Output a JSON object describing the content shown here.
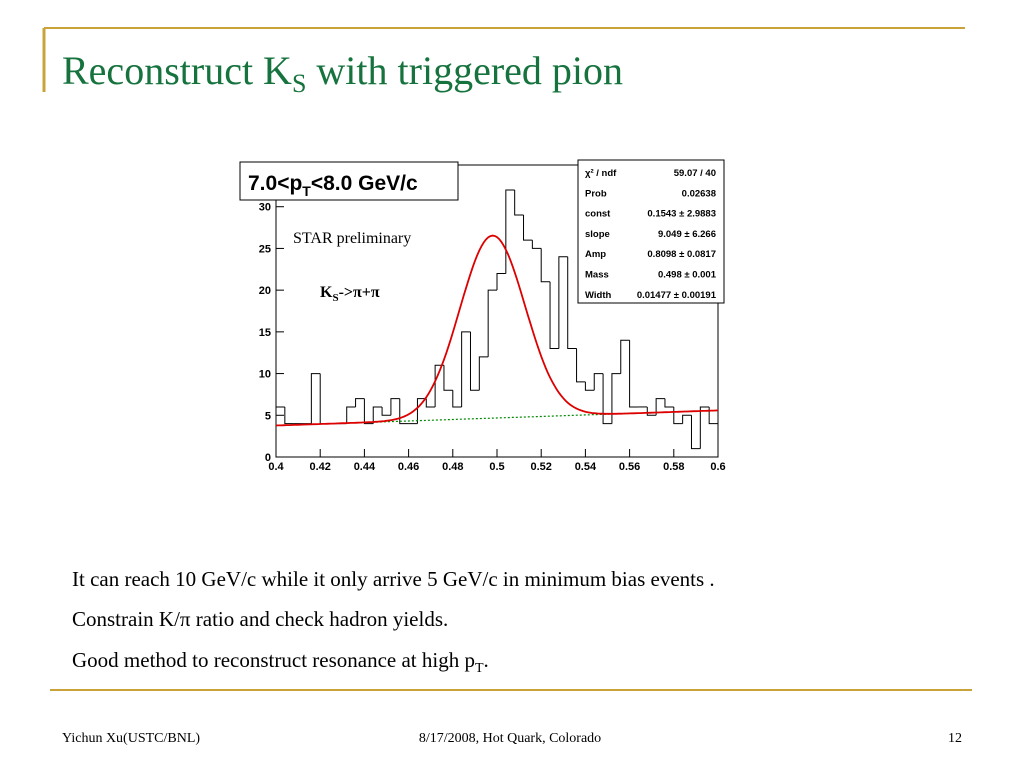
{
  "slide": {
    "title": {
      "main": "Reconstruct K",
      "sub": "S",
      "rest": " with triggered pion"
    },
    "body": [
      {
        "text": "It can reach 10 GeV/c while it only arrive 5 GeV/c in minimum bias events ."
      },
      {
        "text": "Constrain K/π ratio and check hadron yields."
      },
      {
        "text": "Good method to reconstruct resonance at high p",
        "sub": "T",
        "rest": "."
      }
    ],
    "footer": {
      "left": "Yichun Xu(USTC/BNL)",
      "center": "8/17/2008, Hot Quark, Colorado",
      "right": "12"
    }
  },
  "chart_data": {
    "type": "histogram",
    "title": {
      "main": "7.0<p",
      "sub": "T",
      "rest": "<8.0 GeV/c"
    },
    "annotations": [
      "STAR preliminary",
      {
        "main": "K",
        "sub": "S",
        "rest": "->π+π"
      }
    ],
    "bins": [
      0.4,
      0.404,
      0.408,
      0.412,
      0.416,
      0.42,
      0.424,
      0.428,
      0.432,
      0.436,
      0.44,
      0.444,
      0.448,
      0.452,
      0.456,
      0.46,
      0.464,
      0.468,
      0.472,
      0.476,
      0.48,
      0.484,
      0.488,
      0.492,
      0.496,
      0.5,
      0.504,
      0.508,
      0.512,
      0.516,
      0.52,
      0.524,
      0.528,
      0.532,
      0.536,
      0.54,
      0.544,
      0.548,
      0.552,
      0.556,
      0.56,
      0.564,
      0.568,
      0.572,
      0.576,
      0.58,
      0.584,
      0.588,
      0.592,
      0.596,
      0.6
    ],
    "values": [
      6,
      4,
      4,
      4,
      10,
      4,
      4,
      4,
      6,
      7,
      4,
      6,
      5,
      7,
      4,
      4,
      7,
      6,
      11,
      8,
      6,
      15,
      8,
      12,
      20,
      22,
      32,
      29,
      26,
      25,
      21,
      13,
      24,
      13,
      9,
      8,
      10,
      4,
      10,
      14,
      6,
      6,
      5,
      7,
      6,
      4,
      5,
      1,
      6,
      4
    ],
    "color": "#000000",
    "fit_color": "#dd0000",
    "background_color": "#008800",
    "xlim": [
      0.4,
      0.6
    ],
    "xticks": [
      0.4,
      0.42,
      0.44,
      0.46,
      0.48,
      0.5,
      0.52,
      0.54,
      0.56,
      0.58,
      0.6
    ],
    "ylim": [
      0,
      35
    ],
    "yticks": [
      0,
      5,
      10,
      15,
      20,
      25,
      30
    ],
    "stats": [
      {
        "name": "χ² / ndf",
        "value": "59.07 / 40"
      },
      {
        "name": "Prob",
        "value": "0.02638"
      },
      {
        "name": "const",
        "value": "0.1543 ± 2.9883"
      },
      {
        "name": "slope",
        "value": "9.049 ± 6.266"
      },
      {
        "name": "Amp",
        "value": "0.8098 ± 0.0817"
      },
      {
        "name": "Mass",
        "value": "0.498 ± 0.001"
      },
      {
        "name": "Width",
        "value": "0.01477 ± 0.00191"
      }
    ]
  }
}
